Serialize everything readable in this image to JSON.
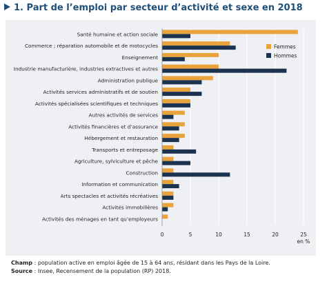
{
  "title": "1. Part de l’emploi par secteur d’activité et sexe en 2018",
  "colors": {
    "femmes": "#e8a33c",
    "hommes": "#1c3350",
    "grid": "#ffffff",
    "title": "#1f4e79"
  },
  "chart_data": {
    "type": "bar",
    "orientation": "horizontal",
    "categories": [
      "Santé humaine et action sociale",
      "Commerce ; réparation automobile et de motocycles",
      "Enseignement",
      "Industrie manufacturière, industries extractives et autres",
      "Administration publique",
      "Activités services administratifs et de soutien",
      "Activités spécialisées scientifiques et techniques",
      "Autres activités de services",
      "Activités financières et d’assurance",
      "Hébergement et restauration",
      "Transports et entreposage",
      "Agriculture, sylviculture et pêche",
      "Construction",
      "Information et communication",
      "Arts spectacles et activités récréatives",
      "Activités immobilières",
      "Activités des ménages en tant qu’employeurs"
    ],
    "series": [
      {
        "name": "Femmes",
        "values": [
          24,
          12,
          10,
          10,
          9,
          5,
          5,
          4,
          4,
          4,
          2,
          2,
          2,
          2,
          2,
          2,
          1
        ]
      },
      {
        "name": "Hommes",
        "values": [
          5,
          13,
          4,
          22,
          7,
          7,
          5,
          2,
          3,
          3,
          6,
          5,
          12,
          3,
          2,
          1,
          0
        ]
      }
    ],
    "xlim": [
      0,
      25
    ],
    "xticks": [
      0,
      5,
      10,
      15,
      20,
      25
    ],
    "xlabel": "en %",
    "legend_position": "top-right",
    "grid": true
  },
  "notes": {
    "champ_label": "Champ",
    "champ_text": " : population active en emploi âgée de 15 à 64 ans, résidant dans les Pays de la Loire.",
    "source_label": "Source",
    "source_text": " : Insee, Recensement de la population (RP) 2018."
  }
}
